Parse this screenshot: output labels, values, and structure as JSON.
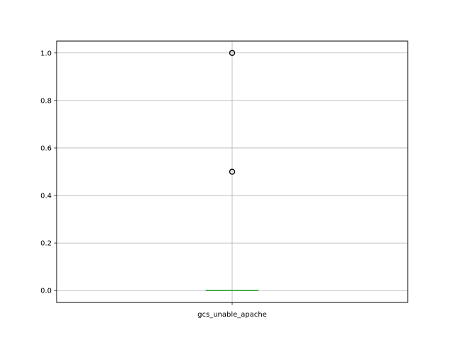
{
  "chart_data": {
    "type": "box",
    "categories": [
      "gcs_unable_apache"
    ],
    "ylim": [
      -0.05,
      1.05
    ],
    "yticks": [
      0.0,
      0.2,
      0.4,
      0.6,
      0.8,
      1.0
    ],
    "ytick_labels": [
      "0.0",
      "0.2",
      "0.4",
      "0.6",
      "0.8",
      "1.0"
    ],
    "grid": true,
    "series": [
      {
        "category": "gcs_unable_apache",
        "min": 0.0,
        "q1": 0.0,
        "median": 0.0,
        "q3": 0.0,
        "max": 0.0,
        "outliers": [
          0.5,
          1.0
        ]
      }
    ],
    "colors": {
      "median": "#2ca02c",
      "box": "#1f77b4",
      "grid": "#b0b0b0",
      "outlier": "#000000"
    }
  }
}
